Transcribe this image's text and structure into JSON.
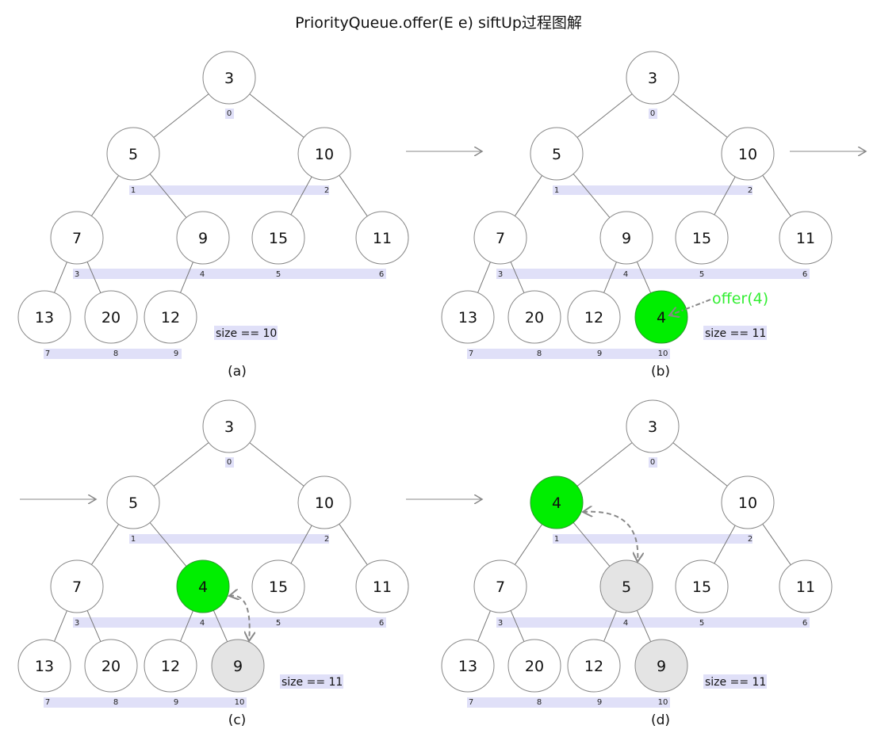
{
  "title": "PriorityQueue.offer(E e) siftUp过程图解",
  "colors": {
    "highlight": "#00ee00",
    "swapped": "#e4e4e4",
    "node": "#ffffff",
    "index_band": "#e0e0f8",
    "annotation": "#33ee33",
    "arrow": "#888888"
  },
  "panels": [
    {
      "caption": "(a)",
      "size_label": "size == 10",
      "values": [
        "3",
        "5",
        "10",
        "7",
        "9",
        "15",
        "11",
        "13",
        "20",
        "12"
      ],
      "green": [],
      "gray": []
    },
    {
      "caption": "(b)",
      "size_label": "size == 11",
      "values": [
        "3",
        "5",
        "10",
        "7",
        "9",
        "15",
        "11",
        "13",
        "20",
        "12",
        "4"
      ],
      "green": [
        10
      ],
      "gray": [],
      "annotation": "offer(4)"
    },
    {
      "caption": "(c)",
      "size_label": "size == 11",
      "values": [
        "3",
        "5",
        "10",
        "7",
        "4",
        "15",
        "11",
        "13",
        "20",
        "12",
        "9"
      ],
      "green": [
        4
      ],
      "gray": [
        10
      ],
      "swap": [
        4,
        10
      ]
    },
    {
      "caption": "(d)",
      "size_label": "size == 11",
      "values": [
        "3",
        "4",
        "10",
        "7",
        "5",
        "15",
        "11",
        "13",
        "20",
        "12",
        "9"
      ],
      "green": [
        1
      ],
      "gray": [
        4,
        10
      ],
      "swap": [
        1,
        4
      ]
    }
  ],
  "indices": [
    "0",
    "1",
    "2",
    "3",
    "4",
    "5",
    "6",
    "7",
    "8",
    "9",
    "10"
  ]
}
